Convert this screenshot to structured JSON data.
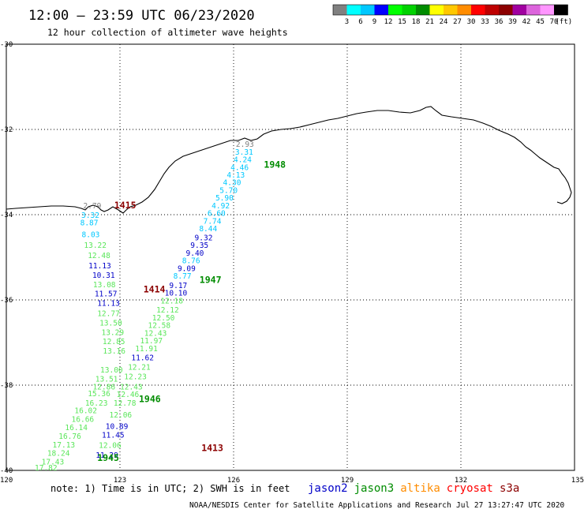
{
  "header": {
    "title": "12:00 – 23:59 UTC 06/23/2020",
    "subtitle": "12 hour collection of altimeter wave heights"
  },
  "legend": {
    "colors": [
      "#808080",
      "#00ffff",
      "#00c8ff",
      "#0000ff",
      "#00ff00",
      "#00d200",
      "#008c00",
      "#ffff00",
      "#ffc800",
      "#ff8c00",
      "#ff0000",
      "#be0000",
      "#8c0000",
      "#a000a0",
      "#dc64dc",
      "#ff96ff",
      "#000000"
    ],
    "ticks": [
      "3",
      "6",
      "9",
      "12",
      "15",
      "18",
      "21",
      "24",
      "27",
      "30",
      "33",
      "36",
      "39",
      "42",
      "45",
      "70"
    ],
    "unit": "(ft)"
  },
  "axes": {
    "lon_ticks": [
      "120",
      "123",
      "126",
      "129",
      "132",
      "135"
    ],
    "lat_ticks": [
      "-30",
      "-32",
      "-34",
      "-36",
      "-38",
      "-40"
    ]
  },
  "tracks": {
    "colors": {
      "gray": "#808080",
      "cyan": "#00c8ff",
      "lightgreen": "#5ae65a",
      "blue": "#0000c8",
      "green": "#008c00",
      "maroon": "#8c0000"
    },
    "pass_times": [
      {
        "label": "1948",
        "color": "green",
        "lon": 126.8,
        "lat": -32.9
      },
      {
        "label": "1947",
        "color": "green",
        "lon": 125.1,
        "lat": -35.6
      },
      {
        "label": "1946",
        "color": "green",
        "lon": 123.5,
        "lat": -38.4
      },
      {
        "label": "1945",
        "color": "green",
        "lon": 122.4,
        "lat": -39.78
      },
      {
        "label": "1415",
        "color": "maroon",
        "lon": 122.85,
        "lat": -33.85
      },
      {
        "label": "1414",
        "color": "maroon",
        "lon": 123.62,
        "lat": -35.82
      },
      {
        "label": "1413",
        "color": "maroon",
        "lon": 125.15,
        "lat": -39.55
      }
    ],
    "wave_heights": [
      {
        "v": "2.93",
        "c": "gray",
        "lon": 126.06,
        "lat": -32.41
      },
      {
        "v": "3.31",
        "c": "cyan",
        "lon": 126.04,
        "lat": -32.59
      },
      {
        "v": "4.24",
        "c": "cyan",
        "lon": 126.0,
        "lat": -32.77
      },
      {
        "v": "4.46",
        "c": "cyan",
        "lon": 125.92,
        "lat": -32.95
      },
      {
        "v": "4.13",
        "c": "cyan",
        "lon": 125.82,
        "lat": -33.13
      },
      {
        "v": "4.30",
        "c": "cyan",
        "lon": 125.72,
        "lat": -33.31
      },
      {
        "v": "5.70",
        "c": "cyan",
        "lon": 125.63,
        "lat": -33.49
      },
      {
        "v": "5.90",
        "c": "cyan",
        "lon": 125.52,
        "lat": -33.67
      },
      {
        "v": "4.92",
        "c": "cyan",
        "lon": 125.42,
        "lat": -33.85
      },
      {
        "v": "6.60",
        "c": "cyan",
        "lon": 125.31,
        "lat": -34.03
      },
      {
        "v": "7.74",
        "c": "cyan",
        "lon": 125.2,
        "lat": -34.21
      },
      {
        "v": "8.44",
        "c": "cyan",
        "lon": 125.09,
        "lat": -34.39
      },
      {
        "v": "9.32",
        "c": "blue",
        "lon": 124.97,
        "lat": -34.6
      },
      {
        "v": "9.35",
        "c": "blue",
        "lon": 124.86,
        "lat": -34.78
      },
      {
        "v": "9.40",
        "c": "blue",
        "lon": 124.74,
        "lat": -34.96
      },
      {
        "v": "8.76",
        "c": "cyan",
        "lon": 124.64,
        "lat": -35.14
      },
      {
        "v": "9.09",
        "c": "blue",
        "lon": 124.52,
        "lat": -35.32
      },
      {
        "v": "8.77",
        "c": "cyan",
        "lon": 124.41,
        "lat": -35.5
      },
      {
        "v": "9.17",
        "c": "blue",
        "lon": 124.3,
        "lat": -35.72
      },
      {
        "v": "10.10",
        "c": "blue",
        "lon": 124.18,
        "lat": -35.9
      },
      {
        "v": "12.18",
        "c": "lightgreen",
        "lon": 124.07,
        "lat": -36.08
      },
      {
        "v": "12.12",
        "c": "lightgreen",
        "lon": 123.96,
        "lat": -36.3
      },
      {
        "v": "12.50",
        "c": "lightgreen",
        "lon": 123.85,
        "lat": -36.48
      },
      {
        "v": "12.58",
        "c": "lightgreen",
        "lon": 123.74,
        "lat": -36.66
      },
      {
        "v": "12.43",
        "c": "lightgreen",
        "lon": 123.64,
        "lat": -36.84
      },
      {
        "v": "11.97",
        "c": "lightgreen",
        "lon": 123.53,
        "lat": -37.02
      },
      {
        "v": "11.91",
        "c": "lightgreen",
        "lon": 123.4,
        "lat": -37.2
      },
      {
        "v": "11.62",
        "c": "blue",
        "lon": 123.3,
        "lat": -37.42
      },
      {
        "v": "12.21",
        "c": "lightgreen",
        "lon": 123.21,
        "lat": -37.64
      },
      {
        "v": "12.23",
        "c": "lightgreen",
        "lon": 123.11,
        "lat": -37.86
      },
      {
        "v": "12.43",
        "c": "lightgreen",
        "lon": 123.0,
        "lat": -38.1
      },
      {
        "v": "12.46",
        "c": "lightgreen",
        "lon": 122.91,
        "lat": -38.28
      },
      {
        "v": "12.78",
        "c": "lightgreen",
        "lon": 122.83,
        "lat": -38.48
      },
      {
        "v": "12.06",
        "c": "lightgreen",
        "lon": 122.72,
        "lat": -38.76
      },
      {
        "v": "10.89",
        "c": "blue",
        "lon": 122.62,
        "lat": -39.03
      },
      {
        "v": "11.45",
        "c": "blue",
        "lon": 122.52,
        "lat": -39.23
      },
      {
        "v": "12.06",
        "c": "lightgreen",
        "lon": 122.44,
        "lat": -39.47
      },
      {
        "v": "11.29",
        "c": "blue",
        "lon": 122.36,
        "lat": -39.7
      },
      {
        "v": "2.79",
        "c": "gray",
        "lon": 122.03,
        "lat": -33.85
      },
      {
        "v": "3.32",
        "c": "cyan",
        "lon": 121.98,
        "lat": -34.07
      },
      {
        "v": "8.87",
        "c": "cyan",
        "lon": 121.95,
        "lat": -34.25
      },
      {
        "v": "8.03",
        "c": "cyan",
        "lon": 121.99,
        "lat": -34.53
      },
      {
        "v": "13.22",
        "c": "lightgreen",
        "lon": 122.05,
        "lat": -34.78
      },
      {
        "v": "12.48",
        "c": "lightgreen",
        "lon": 122.15,
        "lat": -35.02
      },
      {
        "v": "11.13",
        "c": "blue",
        "lon": 122.17,
        "lat": -35.26
      },
      {
        "v": "10.31",
        "c": "blue",
        "lon": 122.27,
        "lat": -35.48
      },
      {
        "v": "13.08",
        "c": "lightgreen",
        "lon": 122.29,
        "lat": -35.7
      },
      {
        "v": "11.57",
        "c": "blue",
        "lon": 122.33,
        "lat": -35.92
      },
      {
        "v": "11.13",
        "c": "blue",
        "lon": 122.4,
        "lat": -36.14
      },
      {
        "v": "12.77",
        "c": "lightgreen",
        "lon": 122.4,
        "lat": -36.38
      },
      {
        "v": "13.50",
        "c": "lightgreen",
        "lon": 122.46,
        "lat": -36.6
      },
      {
        "v": "13.29",
        "c": "lightgreen",
        "lon": 122.51,
        "lat": -36.82
      },
      {
        "v": "12.85",
        "c": "lightgreen",
        "lon": 122.54,
        "lat": -37.04
      },
      {
        "v": "13.16",
        "c": "lightgreen",
        "lon": 122.55,
        "lat": -37.26
      },
      {
        "v": "13.00",
        "c": "lightgreen",
        "lon": 122.48,
        "lat": -37.7
      },
      {
        "v": "13.51",
        "c": "lightgreen",
        "lon": 122.35,
        "lat": -37.92
      },
      {
        "v": "12.86",
        "c": "lightgreen",
        "lon": 122.28,
        "lat": -38.1
      },
      {
        "v": "15.36",
        "c": "lightgreen",
        "lon": 122.15,
        "lat": -38.26
      },
      {
        "v": "16.23",
        "c": "lightgreen",
        "lon": 122.08,
        "lat": -38.48
      },
      {
        "v": "16.02",
        "c": "lightgreen",
        "lon": 121.8,
        "lat": -38.66
      },
      {
        "v": "16.66",
        "c": "lightgreen",
        "lon": 121.72,
        "lat": -38.86
      },
      {
        "v": "16.14",
        "c": "lightgreen",
        "lon": 121.55,
        "lat": -39.06
      },
      {
        "v": "16.76",
        "c": "lightgreen",
        "lon": 121.38,
        "lat": -39.26
      },
      {
        "v": "17.13",
        "c": "lightgreen",
        "lon": 121.22,
        "lat": -39.46
      },
      {
        "v": "18.24",
        "c": "lightgreen",
        "lon": 121.08,
        "lat": -39.66
      },
      {
        "v": "17.43",
        "c": "lightgreen",
        "lon": 120.93,
        "lat": -39.86
      },
      {
        "v": "17.82",
        "c": "lightgreen",
        "lon": 120.75,
        "lat": -40.0
      }
    ]
  },
  "footer": {
    "note": "note:  1) Time is in UTC;  2) SWH is in feet",
    "satellites": [
      {
        "name": "jason2",
        "color": "#0000c8"
      },
      {
        "name": "jason3",
        "color": "#008c00"
      },
      {
        "name": "altika",
        "color": "#ff8c00"
      },
      {
        "name": "cryosat",
        "color": "#ff0000"
      },
      {
        "name": "s3a",
        "color": "#8c0000"
      }
    ],
    "credit": "NOAA/NESDIS Center for Satellite Applications and Research",
    "timestamp": "Jul 27 13:27:47 UTC 2020"
  }
}
